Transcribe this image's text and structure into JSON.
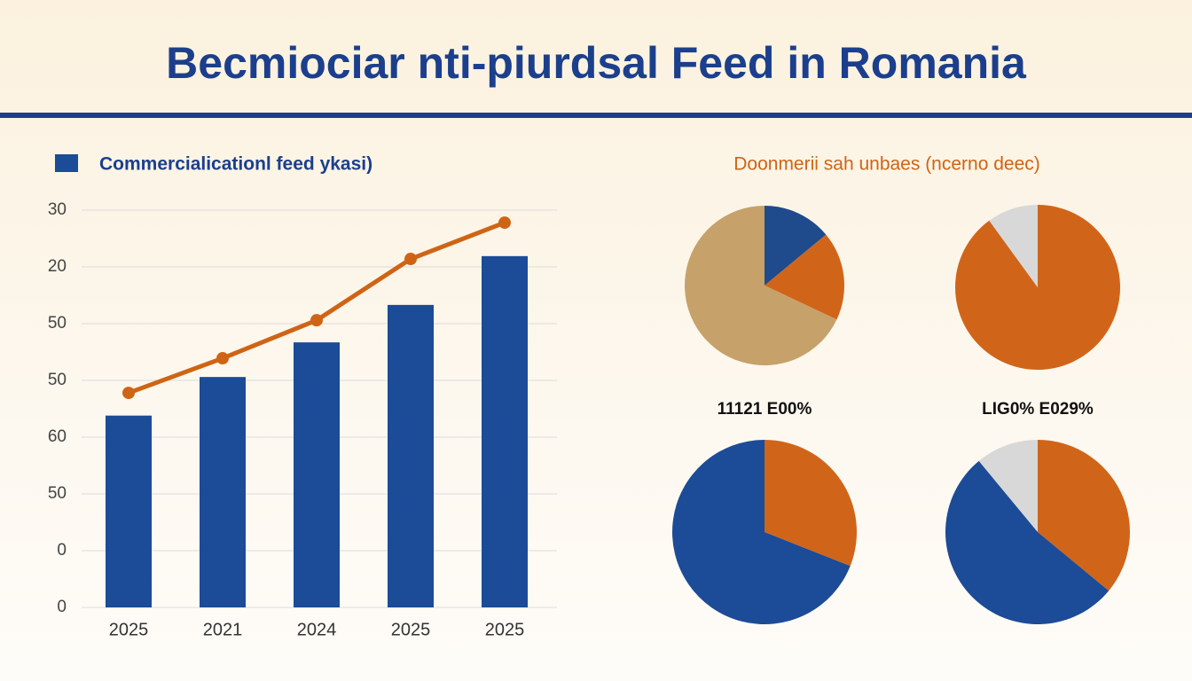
{
  "title": "Becmiociar nti-piurdsal Feed in Romania",
  "chart_data": [
    {
      "type": "bar",
      "categories": [
        "2025",
        "2021",
        "2024",
        "2025",
        "2025"
      ],
      "series": [
        {
          "name": "Commercialicationl feed ykasi)",
          "type": "bar",
          "color": "#1c4b97",
          "values": [
            3.38,
            4.06,
            4.67,
            5.33,
            6.19
          ]
        },
        {
          "type": "line",
          "color": "#cf6416",
          "values": [
            3.78,
            4.39,
            5.06,
            6.14,
            6.78
          ]
        }
      ],
      "ylim": [
        0,
        7
      ],
      "yticks": [
        {
          "value": 0,
          "label": "0"
        },
        {
          "value": 1,
          "label": "0"
        },
        {
          "value": 2,
          "label": "50"
        },
        {
          "value": 3,
          "label": "60"
        },
        {
          "value": 4,
          "label": "50"
        },
        {
          "value": 5,
          "label": "50"
        },
        {
          "value": 6,
          "label": "20"
        },
        {
          "value": 7,
          "label": "30"
        }
      ],
      "grid": true
    },
    {
      "type": "pie",
      "title": "Doonmerii sah unbaes (ncerno deec)",
      "values": [
        14,
        18,
        68
      ],
      "colors": [
        "#1f4a8c",
        "#d0651a",
        "#c6a16a"
      ]
    },
    {
      "type": "pie",
      "values": [
        90,
        10
      ],
      "colors": [
        "#d0651a",
        "#d8d8d8"
      ]
    },
    {
      "type": "pie",
      "title": "11121 E00%",
      "values": [
        31,
        69
      ],
      "colors": [
        "#d0651a",
        "#1c4b97"
      ]
    },
    {
      "type": "pie",
      "title": "LIG0% E029%",
      "values": [
        36,
        53,
        11
      ],
      "colors": [
        "#d0651a",
        "#1c4b97",
        "#d8d8d8"
      ]
    }
  ]
}
